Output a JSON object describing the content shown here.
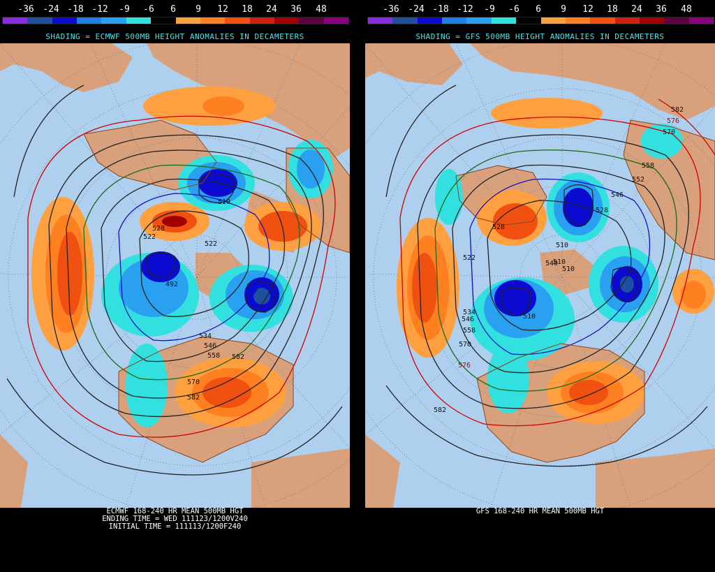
{
  "colorbar": {
    "ticks": [
      "-36",
      "-24",
      "-18",
      "-12",
      "-9",
      "-6",
      "6",
      "9",
      "12",
      "18",
      "24",
      "36",
      "48"
    ],
    "colors": [
      "#8a2be2",
      "#1f4fa0",
      "#0a0ad0",
      "#1e7fe8",
      "#2aa0f0",
      "#33e0e0",
      "#000000",
      "#ffa040",
      "#ff8020",
      "#f05010",
      "#d02010",
      "#a00000",
      "#600040",
      "#8b0080"
    ]
  },
  "map_colors": {
    "ocean": "#aed0ee",
    "land": "#d9a07c",
    "coast": "#8a4520"
  },
  "left": {
    "shading_title": "SHADING = ECMWF 500MB HEIGHT ANOMALIES IN DECAMETERS",
    "caption_lines": [
      "ECMWF 168-240 HR MEAN 500MB HGT",
      "ENDING TIME = WED 111123/1200V240",
      "INITIAL TIME = 111113/1200F240"
    ],
    "contour_labels": [
      "510",
      "528",
      "522",
      "522",
      "492",
      "534",
      "546",
      "558",
      "570",
      "582",
      "582"
    ]
  },
  "right": {
    "shading_title": "SHADING = GFS 500MB HEIGHT ANOMALIES IN DECAMETERS",
    "caption_lines": [
      "GFS 168-240 HR MEAN 500MB HGT"
    ],
    "contour_labels": [
      "582",
      "576",
      "570",
      "558",
      "546",
      "528",
      "510",
      "540",
      "522",
      "534",
      "546",
      "552",
      "558",
      "570",
      "576",
      "582",
      "510",
      "528",
      "510",
      "510"
    ]
  }
}
